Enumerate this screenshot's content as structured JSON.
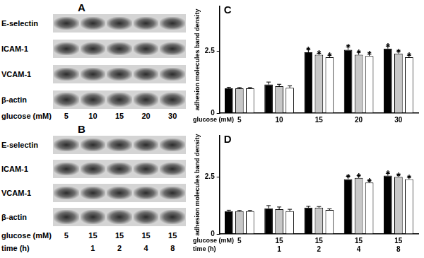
{
  "chart_data": [
    {
      "type": "bar",
      "title": "C",
      "y_label": "adhesion molecules band density",
      "x_label": "glucose (mM)",
      "categories": [
        "5",
        "10",
        "15",
        "20",
        "30"
      ],
      "ylim": [
        0,
        4.3
      ],
      "yticks": [
        0,
        2.5
      ],
      "grid": false,
      "series": [
        {
          "color": "#000000",
          "values": [
            1.0,
            1.15,
            2.45,
            2.55,
            2.6
          ],
          "errors": [
            0.04,
            0.1,
            0.12,
            0.12,
            0.1
          ],
          "annotations": [
            null,
            null,
            "*",
            "*",
            "*"
          ]
        },
        {
          "color": "#c8c8c8",
          "values": [
            1.0,
            1.08,
            2.35,
            2.35,
            2.4
          ],
          "errors": [
            0.03,
            0.08,
            0.06,
            0.1,
            0.08
          ],
          "annotations": [
            null,
            null,
            "*",
            "*",
            "*"
          ]
        },
        {
          "color": "#ffffff",
          "values": [
            1.0,
            1.02,
            2.25,
            2.3,
            2.25
          ],
          "errors": [
            0.03,
            0.08,
            0.08,
            0.08,
            0.08
          ],
          "annotations": [
            null,
            null,
            "*",
            "*",
            "*"
          ]
        }
      ]
    },
    {
      "type": "bar",
      "title": "D",
      "y_label": "adhesion molecules band density",
      "x_label": "glucose (mM)",
      "x2_label": "time (h)",
      "categories": [
        "5",
        "15",
        "15",
        "15",
        "15"
      ],
      "categories2": [
        null,
        "1",
        "2",
        "4",
        "8"
      ],
      "ylim": [
        0,
        4.3
      ],
      "yticks": [
        0,
        2.5
      ],
      "grid": false,
      "series": [
        {
          "color": "#000000",
          "values": [
            1.0,
            1.12,
            1.15,
            2.4,
            2.55
          ],
          "errors": [
            0.04,
            0.12,
            0.06,
            0.12,
            0.1
          ],
          "annotations": [
            null,
            null,
            null,
            "*",
            "*"
          ]
        },
        {
          "color": "#c8c8c8",
          "values": [
            1.0,
            1.08,
            1.15,
            2.45,
            2.5
          ],
          "errors": [
            0.03,
            0.1,
            0.05,
            0.1,
            0.08
          ],
          "annotations": [
            null,
            null,
            null,
            "*",
            "*"
          ]
        },
        {
          "color": "#ffffff",
          "values": [
            1.0,
            1.0,
            1.05,
            2.25,
            2.4
          ],
          "errors": [
            0.03,
            0.08,
            0.05,
            0.08,
            0.08
          ],
          "annotations": [
            null,
            null,
            null,
            "*",
            "*"
          ]
        }
      ]
    }
  ],
  "blots": [
    {
      "panel": "A",
      "rows": [
        "E-selectin",
        "ICAM-1",
        "VCAM-1",
        "β-actin"
      ],
      "lane_labels": [
        {
          "label": "glucose (mM)",
          "values": [
            "5",
            "10",
            "15",
            "20",
            "30"
          ]
        }
      ]
    },
    {
      "panel": "B",
      "rows": [
        "E-selectin",
        "ICAM-1",
        "VCAM-1",
        "β-actin"
      ],
      "lane_labels": [
        {
          "label": "glucose (mM)",
          "values": [
            "5",
            "15",
            "15",
            "15",
            "15"
          ]
        },
        {
          "label": "time (h)",
          "values": [
            null,
            "1",
            "2",
            "4",
            "8"
          ]
        }
      ]
    }
  ]
}
